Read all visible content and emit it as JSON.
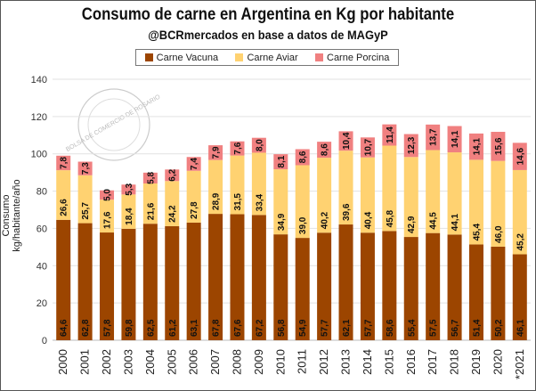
{
  "chart_data": {
    "type": "bar",
    "stacked": true,
    "title": "Consumo de carne en Argentina en Kg por habitante",
    "subtitle": "@BCRmercados en base a datos de MAGyP",
    "ylabel": "Consumo kg/habitante/año",
    "xlabel": "",
    "ylim": [
      0,
      140
    ],
    "yticks": [
      0,
      20,
      40,
      60,
      80,
      100,
      120,
      140
    ],
    "grid": true,
    "legend_position": "top",
    "categories": [
      "2000",
      "2001",
      "2002",
      "2003",
      "2004",
      "2005",
      "2006",
      "2007",
      "2008",
      "2009",
      "2010",
      "2011",
      "2012",
      "2013",
      "2014",
      "2015",
      "2016",
      "2017",
      "2018",
      "2019",
      "2020",
      "*2021"
    ],
    "series": [
      {
        "name": "Carne Vacuna",
        "color": "#9C4500",
        "values": [
          64.6,
          62.8,
          57.8,
          59.8,
          62.5,
          61.2,
          63.1,
          67.8,
          67.6,
          67.2,
          56.8,
          54.9,
          57.7,
          62.1,
          57.7,
          58.6,
          55.4,
          57.5,
          56.7,
          51.4,
          50.2,
          46.1
        ]
      },
      {
        "name": "Carne Aviar",
        "color": "#FFD271",
        "values": [
          26.6,
          25.7,
          17.6,
          18.4,
          21.6,
          24.2,
          27.8,
          28.9,
          31.5,
          33.4,
          34.9,
          39.0,
          40.2,
          39.6,
          40.4,
          45.8,
          42.9,
          44.5,
          44.1,
          45.4,
          46.0,
          45.2
        ]
      },
      {
        "name": "Carne Porcina",
        "color": "#F08080",
        "values": [
          7.8,
          7.3,
          5.0,
          5.3,
          5.8,
          6.2,
          7.4,
          7.9,
          7.6,
          8.0,
          8.1,
          8.6,
          8.6,
          10.4,
          10.7,
          11.4,
          12.3,
          13.7,
          14.1,
          14.1,
          15.6,
          14.6
        ]
      }
    ],
    "decimal_separator": ","
  },
  "watermark": "BOLSA DE COMERCIO DE ROSARIO"
}
